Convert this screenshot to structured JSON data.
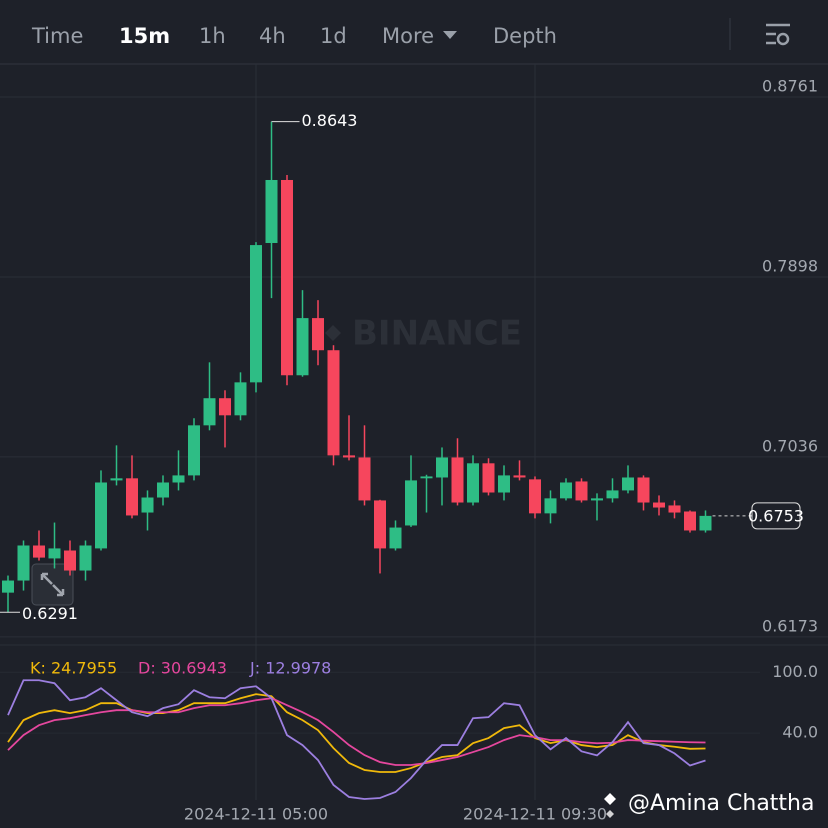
{
  "toolbar": {
    "tabs": [
      "Time",
      "15m",
      "1h",
      "4h",
      "1d",
      "More",
      "Depth"
    ],
    "active": 1
  },
  "watermark": "BINANCE",
  "credit": "@Amina Chattha",
  "chart_data": [
    {
      "type": "candlestick",
      "categories": [
        null,
        null,
        null,
        null,
        null,
        null,
        null,
        null,
        null,
        null,
        null,
        null,
        null,
        null,
        null,
        null,
        "2024-12-11 05:00",
        null,
        null,
        null,
        null,
        null,
        null,
        null,
        null,
        null,
        null,
        null,
        null,
        null,
        null,
        null,
        null,
        null,
        "2024-12-11 09:30",
        null,
        null,
        null,
        null,
        null,
        null,
        null,
        null,
        null,
        null,
        null
      ],
      "open": [
        0.6385,
        0.6443,
        0.6611,
        0.6549,
        0.6587,
        0.6491,
        0.6597,
        0.6923,
        0.6933,
        0.6769,
        0.6841,
        0.6913,
        0.6947,
        0.7187,
        0.7317,
        0.7235,
        0.7393,
        0.8061,
        0.8363,
        0.7427,
        0.7701,
        0.7547,
        0.7043,
        0.7033,
        0.6827,
        0.6597,
        0.6707,
        0.6933,
        0.6937,
        0.7033,
        0.6817,
        0.7005,
        0.6865,
        0.6947,
        0.6928,
        0.6765,
        0.6837,
        0.6918,
        0.6827,
        0.6837,
        0.6875,
        0.6937,
        0.6817,
        0.6803,
        0.6774,
        0.6683
      ],
      "high": [
        0.6467,
        0.6635,
        0.6683,
        0.6721,
        0.6635,
        0.6635,
        0.6971,
        0.7091,
        0.7043,
        0.6875,
        0.6947,
        0.7067,
        0.7221,
        0.7489,
        0.7355,
        0.7441,
        0.8065,
        0.8643,
        0.8387,
        0.7835,
        0.7787,
        0.7571,
        0.7235,
        0.7187,
        0.683,
        0.6731,
        0.7043,
        0.695,
        0.7081,
        0.7125,
        0.7043,
        0.7029,
        0.6995,
        0.7019,
        0.6942,
        0.6875,
        0.6933,
        0.6933,
        0.6861,
        0.6933,
        0.6995,
        0.6947,
        0.6851,
        0.6827,
        0.6779,
        0.6779
      ],
      "low": [
        0.6291,
        0.6395,
        0.6539,
        0.6501,
        0.6467,
        0.6443,
        0.6587,
        0.6899,
        0.6741,
        0.6683,
        0.6803,
        0.6875,
        0.6923,
        0.7163,
        0.7081,
        0.7211,
        0.7345,
        0.7797,
        0.7379,
        0.742,
        0.7475,
        0.6995,
        0.7019,
        0.6803,
        0.6477,
        0.6587,
        0.67,
        0.6769,
        0.6803,
        0.6803,
        0.6803,
        0.6851,
        0.6827,
        0.6923,
        0.6741,
        0.6717,
        0.6827,
        0.6817,
        0.6731,
        0.6817,
        0.6861,
        0.6779,
        0.6755,
        0.6741,
        0.6673,
        0.6673
      ],
      "close": [
        0.6443,
        0.6611,
        0.6553,
        0.6597,
        0.6491,
        0.6611,
        0.6913,
        0.6933,
        0.6755,
        0.6841,
        0.6913,
        0.6947,
        0.7187,
        0.7317,
        0.7235,
        0.7393,
        0.8051,
        0.8363,
        0.7427,
        0.7701,
        0.7547,
        0.7043,
        0.7033,
        0.6827,
        0.6597,
        0.6697,
        0.6923,
        0.6942,
        0.7033,
        0.6817,
        0.7005,
        0.6865,
        0.6947,
        0.6937,
        0.6765,
        0.6837,
        0.6913,
        0.6827,
        0.6837,
        0.6875,
        0.6937,
        0.6817,
        0.6793,
        0.6769,
        0.6683,
        0.6753
      ],
      "up_color": "#2ebd85",
      "down_color": "#f6465d",
      "ylim": [
        0.6158,
        0.8919
      ],
      "yticks": [
        0.8761,
        0.7898,
        0.7036,
        0.6173
      ],
      "grid": true
    },
    {
      "type": "line",
      "series": [
        {
          "name": "K: 24.7955",
          "color": "#f0b90b",
          "values": [
            31.1,
            52.8,
            59.7,
            62.6,
            59.7,
            62.6,
            69.5,
            69.5,
            62.6,
            59.7,
            59.7,
            62.6,
            69.5,
            69.5,
            69.5,
            74.4,
            78.4,
            76.4,
            60.6,
            52.8,
            42.9,
            25.2,
            10.5,
            3.6,
            1.6,
            1.6,
            5.5,
            11.4,
            16.4,
            18.3,
            30.1,
            35.1,
            44.9,
            47.8,
            35.1,
            30.1,
            33.1,
            28.2,
            26.2,
            28.2,
            38.0,
            31.1,
            28.2,
            26.5,
            24.5,
            24.7955
          ]
        },
        {
          "name": "D: 30.6943",
          "color": "#e5479e",
          "values": [
            23.2,
            38.0,
            47.8,
            52.8,
            54.7,
            57.7,
            60.6,
            62.6,
            62.6,
            60.6,
            60.6,
            60.6,
            64.6,
            67.5,
            67.5,
            69.5,
            72.4,
            74.4,
            67.5,
            60.6,
            52.8,
            41.0,
            28.2,
            18.3,
            11.4,
            8.5,
            8.5,
            10.5,
            13.4,
            16.4,
            21.3,
            26.2,
            33.1,
            38.0,
            36.0,
            33.1,
            33.1,
            31.1,
            30.0,
            30.5,
            33.1,
            32.5,
            32.0,
            31.5,
            31.0,
            30.6943
          ]
        },
        {
          "name": "J: 12.9978",
          "color": "#9c7fe0",
          "values": [
            57.7,
            92.1,
            92.1,
            89.2,
            72.4,
            75.4,
            84.3,
            72.4,
            60.6,
            56.7,
            64.6,
            68.5,
            82.3,
            75.4,
            74.4,
            84.3,
            86.2,
            74.4,
            38.0,
            28.2,
            13.4,
            -11.2,
            -23.0,
            -25.0,
            -24.0,
            -18.1,
            -4.3,
            13.4,
            28.2,
            28.2,
            54.7,
            55.7,
            69.5,
            67.5,
            38.0,
            24.0,
            35.1,
            22.0,
            18.0,
            31.1,
            50.8,
            30.1,
            28.2,
            20.0,
            8.0,
            12.9978
          ]
        }
      ],
      "ylim": [
        -26,
        120
      ],
      "yticks": [
        {
          "value": 100,
          "label": "100.0"
        },
        {
          "value": 40,
          "label": "40.0"
        }
      ],
      "grid": true
    }
  ]
}
